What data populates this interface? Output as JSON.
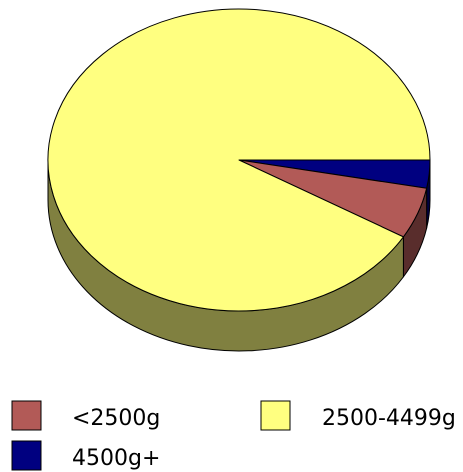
{
  "chart_data": {
    "type": "pie",
    "style": "3d",
    "title": "",
    "categories": [
      "<2500g",
      "2500-4499g",
      "4500g+"
    ],
    "values": [
      5.5,
      91.5,
      3.0
    ],
    "unit": "percent",
    "colors": {
      "<2500g": "#b25a57",
      "2500-4499g": "#ffff80",
      "4500g+": "#000080"
    },
    "legend": {
      "placement": "bottom",
      "entries": [
        {
          "label": "<2500g",
          "color": "#b25a57"
        },
        {
          "label": "2500-4499g",
          "color": "#ffff80"
        },
        {
          "label": "4500g+",
          "color": "#000080"
        }
      ]
    }
  }
}
